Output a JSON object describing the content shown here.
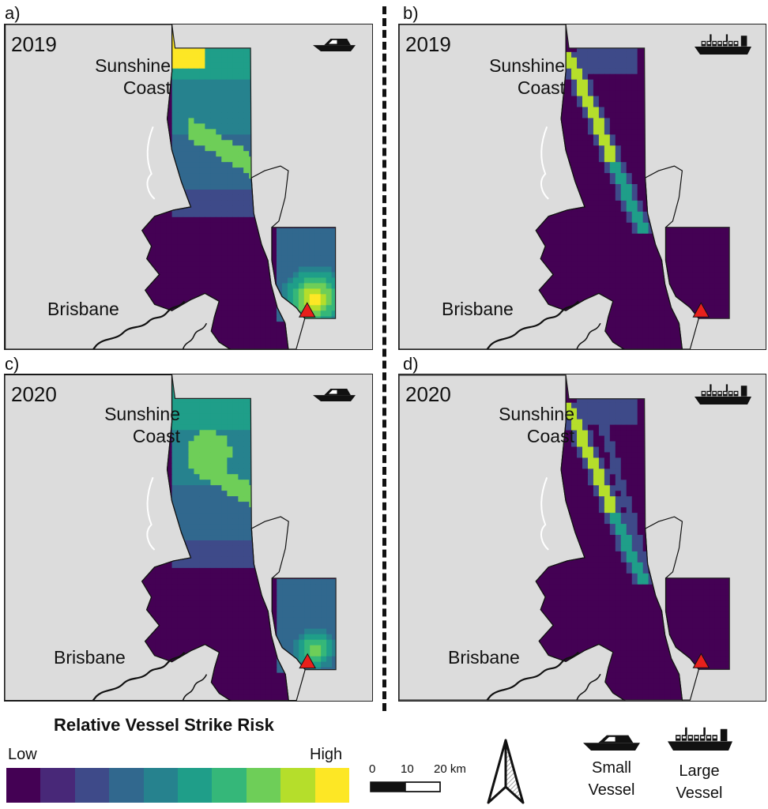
{
  "panels": [
    {
      "label": "a)",
      "year": "2019",
      "vessel": "small",
      "place_top": "Sunshine Coast",
      "place_bottom": "Brisbane"
    },
    {
      "label": "b)",
      "year": "2019",
      "vessel": "large",
      "place_top": "Sunshine Coast",
      "place_bottom": "Brisbane"
    },
    {
      "label": "c)",
      "year": "2020",
      "vessel": "small",
      "place_top": "Sunshine Coast",
      "place_bottom": "Brisbane"
    },
    {
      "label": "d)",
      "year": "2020",
      "vessel": "large",
      "place_top": "Sunshine Coast",
      "place_bottom": "Brisbane"
    }
  ],
  "place_names": {
    "sunshine": "Sunshine",
    "coast": "Coast",
    "brisbane": "Brisbane"
  },
  "legend": {
    "title": "Relative Vessel Strike Risk",
    "low": "Low",
    "high": "High",
    "colors": [
      "#440154",
      "#482878",
      "#3e4a89",
      "#31688e",
      "#26828e",
      "#1f9e89",
      "#35b779",
      "#6ece58",
      "#b5de2b",
      "#fde725"
    ]
  },
  "scale_bar": {
    "ticks": [
      "0",
      "10",
      "20 km"
    ]
  },
  "vessel_legend": {
    "small": "Small Vessel",
    "large": "Large Vessel",
    "small_line1": "Small",
    "small_line2": "Vessel",
    "large_line1": "Large",
    "large_line2": "Vessel"
  },
  "colors": {
    "land": "#dcdcdc",
    "water_low": "#440154",
    "marker": "#e8201c"
  },
  "icons": [
    "boat-icon",
    "cargo-ship-icon",
    "north-arrow-icon",
    "triangle-marker-icon"
  ]
}
